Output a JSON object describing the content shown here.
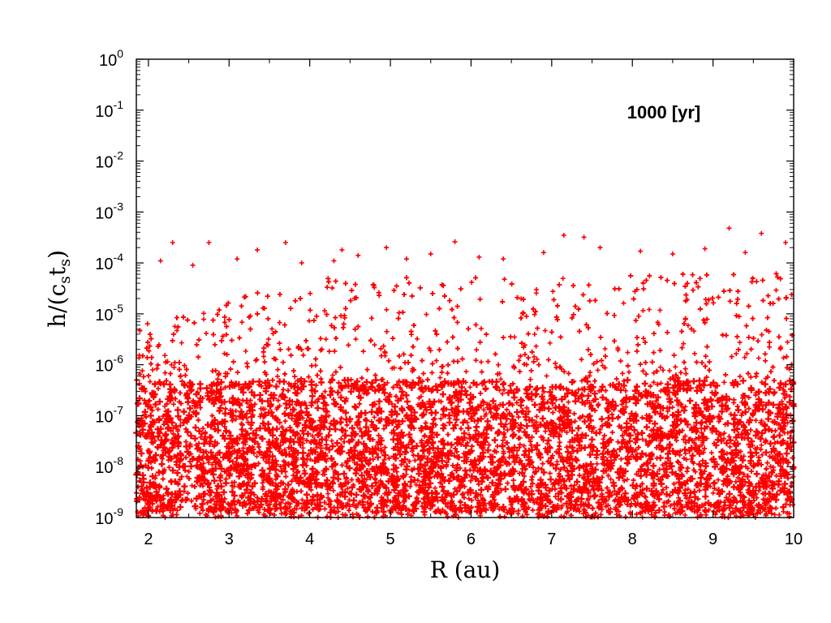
{
  "chart_data": {
    "type": "scatter",
    "title": "",
    "xlabel": "R (au)",
    "ylabel": "h/(cₛtₛ)",
    "ylabel_parts": {
      "base": "h/(c",
      "sub1": "s",
      "mid": "t",
      "sub2": "s",
      "end": ")"
    },
    "annotation": "1000 [yr]",
    "xlim": [
      1.85,
      10
    ],
    "ylim": [
      1e-09,
      1
    ],
    "yscale": "log",
    "grid": false,
    "legend": "none",
    "x_ticks": [
      2,
      3,
      4,
      5,
      6,
      7,
      8,
      9,
      10
    ],
    "x_tick_labels": [
      "2",
      "3",
      "4",
      "5",
      "6",
      "7",
      "8",
      "9",
      "10"
    ],
    "y_ticks": [
      {
        "base": "10",
        "exp": "0"
      },
      {
        "base": "10",
        "exp": "-1"
      },
      {
        "base": "10",
        "exp": "-2"
      },
      {
        "base": "10",
        "exp": "-3"
      },
      {
        "base": "10",
        "exp": "-4"
      },
      {
        "base": "10",
        "exp": "-5"
      },
      {
        "base": "10",
        "exp": "-6"
      },
      {
        "base": "10",
        "exp": "-7"
      },
      {
        "base": "10",
        "exp": "-8"
      },
      {
        "base": "10",
        "exp": "-9"
      }
    ],
    "series": [
      {
        "marker": "plus",
        "color": "#ff0000",
        "points": [
          [
            2.3,
            0.00025
          ],
          [
            2.75,
            0.00025
          ],
          [
            3.35,
            0.00018
          ],
          [
            3.7,
            0.00025
          ],
          [
            4.4,
            0.00018
          ],
          [
            4.95,
            0.0002
          ],
          [
            5.8,
            0.00026
          ],
          [
            7.15,
            0.00035
          ],
          [
            7.4,
            0.00032
          ],
          [
            9.2,
            0.00048
          ],
          [
            9.6,
            0.00038
          ],
          [
            9.9,
            0.00025
          ],
          [
            2.15,
            0.00011
          ],
          [
            2.55,
            9e-05
          ],
          [
            3.1,
            0.00012
          ],
          [
            3.9,
            0.0001
          ],
          [
            4.3,
            0.00011
          ],
          [
            4.6,
            0.00014
          ],
          [
            5.2,
            0.00012
          ],
          [
            5.5,
            0.00015
          ],
          [
            6.1,
            0.00013
          ],
          [
            6.4,
            0.00012
          ],
          [
            6.9,
            0.00016
          ],
          [
            7.6,
            0.0002
          ],
          [
            8.1,
            0.00017
          ],
          [
            8.5,
            0.00015
          ],
          [
            8.9,
            0.00019
          ],
          [
            9.4,
            0.00016
          ]
        ]
      }
    ]
  }
}
